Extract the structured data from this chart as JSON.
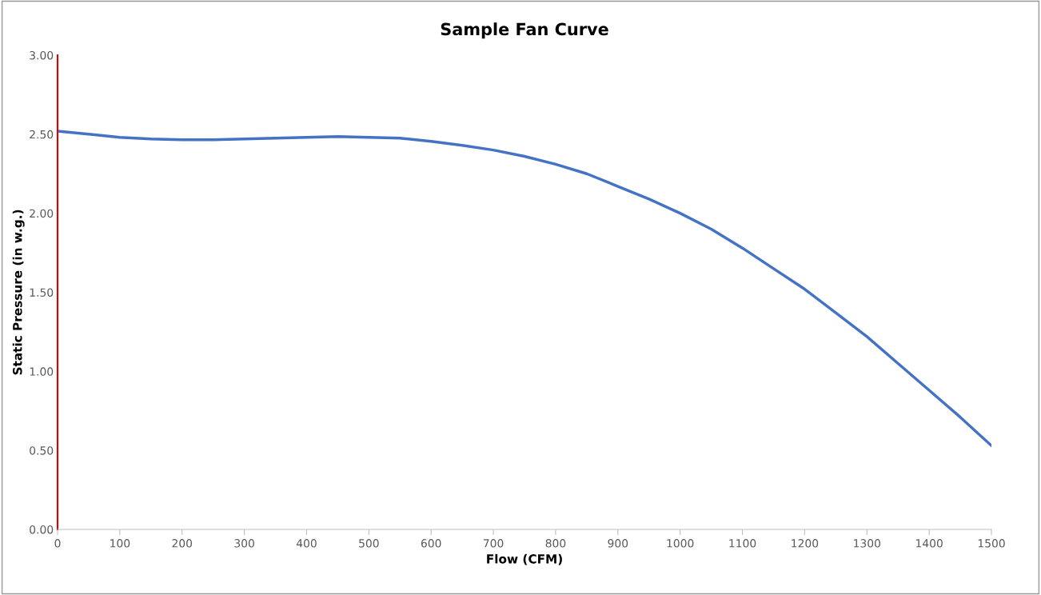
{
  "chart_data": {
    "type": "line",
    "title": "Sample Fan Curve",
    "xlabel": "Flow (CFM)",
    "ylabel": "Static Pressure (in w.g.)",
    "x": [
      0,
      50,
      100,
      150,
      200,
      250,
      300,
      350,
      400,
      450,
      500,
      550,
      600,
      650,
      700,
      750,
      800,
      850,
      900,
      950,
      1000,
      1050,
      1100,
      1150,
      1200,
      1250,
      1300,
      1350,
      1400,
      1450,
      1500
    ],
    "series": [
      {
        "color": "#4472c4",
        "values": [
          2.52,
          2.5,
          2.48,
          2.47,
          2.465,
          2.465,
          2.47,
          2.475,
          2.48,
          2.485,
          2.48,
          2.475,
          2.455,
          2.43,
          2.4,
          2.36,
          2.31,
          2.25,
          2.17,
          2.09,
          2.0,
          1.9,
          1.78,
          1.65,
          1.52,
          1.37,
          1.22,
          1.05,
          0.88,
          0.71,
          0.53
        ]
      }
    ],
    "xlim": [
      0,
      1500
    ],
    "xticks": [
      0,
      100,
      200,
      300,
      400,
      500,
      600,
      700,
      800,
      900,
      1000,
      1100,
      1200,
      1300,
      1400,
      1500
    ],
    "ylim": [
      0,
      3
    ],
    "yticks": [
      {
        "value": 0,
        "label": "0.00"
      },
      {
        "value": 0.5,
        "label": "0.50"
      },
      {
        "value": 1,
        "label": "1.00"
      },
      {
        "value": 1.5,
        "label": "1.50"
      },
      {
        "value": 2,
        "label": "2.00"
      },
      {
        "value": 2.5,
        "label": "2.50"
      },
      {
        "value": 3,
        "label": "3.00"
      }
    ],
    "grid": false,
    "marker": "none",
    "line_style": "solid"
  }
}
